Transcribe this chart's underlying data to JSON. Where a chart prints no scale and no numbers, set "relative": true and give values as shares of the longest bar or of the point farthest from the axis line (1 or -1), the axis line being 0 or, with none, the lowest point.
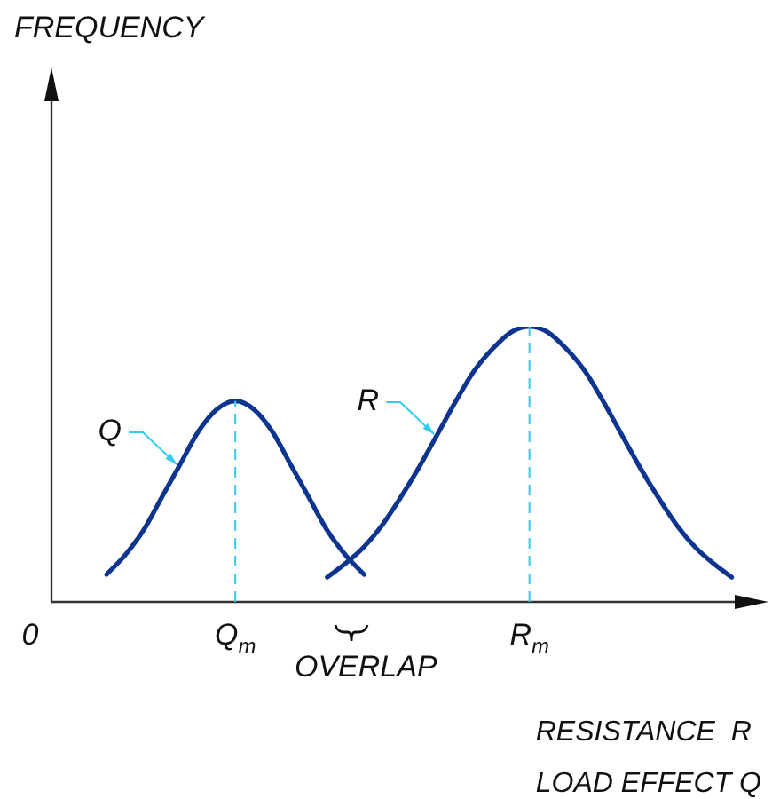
{
  "chart_data": {
    "type": "line",
    "title": "FREQUENCY",
    "xlabel": "RESISTANCE  R\nLOAD EFFECT Q",
    "relative": true,
    "categories": [
      "0",
      null,
      null,
      null,
      null,
      null,
      null,
      null,
      null,
      null,
      "Q$_{m}$",
      null,
      null,
      null,
      null,
      null,
      null,
      null,
      null,
      null,
      null,
      null,
      null,
      null,
      null,
      null,
      "R$_{m}$",
      null,
      null,
      null,
      null,
      null,
      null,
      null,
      null,
      null,
      null,
      null,
      null,
      null
    ],
    "series": [
      {
        "name": "Q",
        "color": "#0d3590",
        "values": [
          null,
          null,
          null,
          0.1,
          0.17,
          0.26,
          0.38,
          0.5,
          0.62,
          0.7,
          0.73,
          0.7,
          0.62,
          0.5,
          0.38,
          0.26,
          0.17,
          0.1,
          null,
          null,
          null,
          null,
          null,
          null,
          null,
          null,
          null,
          null,
          null,
          null,
          null,
          null,
          null,
          null,
          null,
          null,
          null,
          null,
          null,
          null
        ]
      },
      {
        "name": "R",
        "color": "#0d3590",
        "values": [
          null,
          null,
          null,
          null,
          null,
          null,
          null,
          null,
          null,
          null,
          null,
          null,
          null,
          null,
          null,
          0.09,
          0.14,
          0.2,
          0.28,
          0.38,
          0.49,
          0.61,
          0.73,
          0.84,
          0.92,
          0.98,
          1,
          0.98,
          0.92,
          0.84,
          0.73,
          0.61,
          0.49,
          0.38,
          0.28,
          0.2,
          0.14,
          0.09,
          null,
          null
        ]
      }
    ],
    "ref_lines": [
      {
        "axis": "x",
        "value": "Q$_{m}$",
        "color": "#33ccee",
        "line_style": "dashed"
      },
      {
        "axis": "x",
        "value": "R$_{m}$",
        "color": "#33ccee",
        "line_style": "dashed"
      }
    ],
    "annotations": [
      "OVERLAP"
    ],
    "legend": false,
    "marker": "none",
    "line_style": "solid",
    "grid": false
  }
}
